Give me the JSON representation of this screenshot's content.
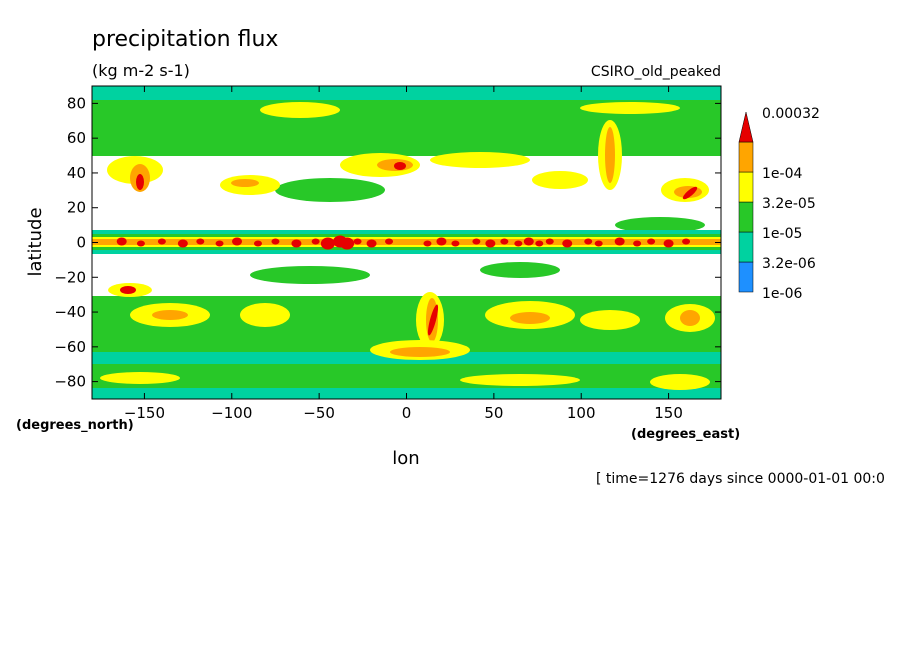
{
  "chart_data": {
    "type": "heatmap",
    "title": "precipitation flux",
    "subtitle": "(kg m-2 s-1)",
    "model_label": "CSIRO_old_peaked",
    "xlabel": "lon",
    "ylabel": "latitude",
    "x_units": "(degrees_east)",
    "y_units": "(degrees_north)",
    "time_note": "[ time=1276 days since 0000-01-01 00:0",
    "xlim": [
      -180,
      180
    ],
    "ylim": [
      -90,
      90
    ],
    "x_ticks": [
      -150,
      -100,
      -50,
      0,
      50,
      100,
      150
    ],
    "y_ticks": [
      80,
      60,
      40,
      20,
      0,
      -20,
      -40,
      -60,
      -80
    ],
    "grid": false,
    "legend_position": "right",
    "color_levels": [
      {
        "label": "1e-06",
        "color": "#1e90ff"
      },
      {
        "label": "3.2e-06",
        "color": "#00d2a0"
      },
      {
        "label": "1e-05",
        "color": "#28c828"
      },
      {
        "label": "3.2e-05",
        "color": "#ffff00"
      },
      {
        "label": "1e-04",
        "color": "#ffa500"
      },
      {
        "label": "0.00032",
        "color": "#e60000"
      }
    ]
  }
}
